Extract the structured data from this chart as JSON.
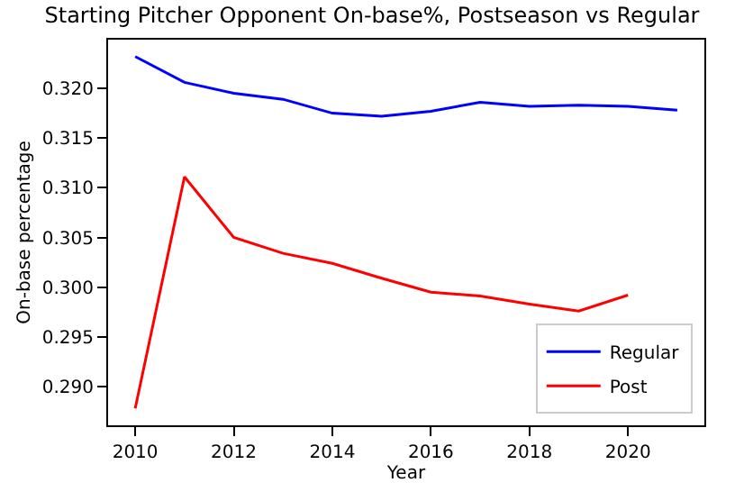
{
  "chart_data": {
    "type": "line",
    "title": "Starting Pitcher Opponent On-base%, Postseason vs Regular",
    "xlabel": "Year",
    "ylabel": "On-base percentage",
    "series": [
      {
        "name": "Regular",
        "color": "#0000ff",
        "x": [
          2010,
          2011,
          2012,
          2013,
          2014,
          2015,
          2016,
          2017,
          2018,
          2019,
          2020,
          2021
        ],
        "values": [
          0.3232,
          0.3206,
          0.3195,
          0.3189,
          0.3175,
          0.3172,
          0.3177,
          0.3186,
          0.3182,
          0.3183,
          0.3182,
          0.3178
        ]
      },
      {
        "name": "Post",
        "color": "#ff0000",
        "x": [
          2010,
          2011,
          2012,
          2013,
          2014,
          2015,
          2016,
          2017,
          2018,
          2019,
          2020
        ],
        "values": [
          0.2878,
          0.3111,
          0.305,
          0.3034,
          0.3024,
          0.3009,
          0.2995,
          0.2991,
          0.2983,
          0.2976,
          0.2992
        ]
      }
    ],
    "xlim": [
      2009.45,
      2021.55
    ],
    "xticks": [
      2010,
      2012,
      2014,
      2016,
      2018,
      2020
    ],
    "ylim": [
      0.2861,
      0.3249
    ],
    "yticks": [
      {
        "value": 0.29,
        "label": "0.290"
      },
      {
        "value": 0.295,
        "label": "0.295"
      },
      {
        "value": 0.3,
        "label": "0.300"
      },
      {
        "value": 0.305,
        "label": "0.305"
      },
      {
        "value": 0.31,
        "label": "0.310"
      },
      {
        "value": 0.315,
        "label": "0.315"
      },
      {
        "value": 0.32,
        "label": "0.320"
      }
    ],
    "legend": "bottom right",
    "line_style": "solid"
  }
}
